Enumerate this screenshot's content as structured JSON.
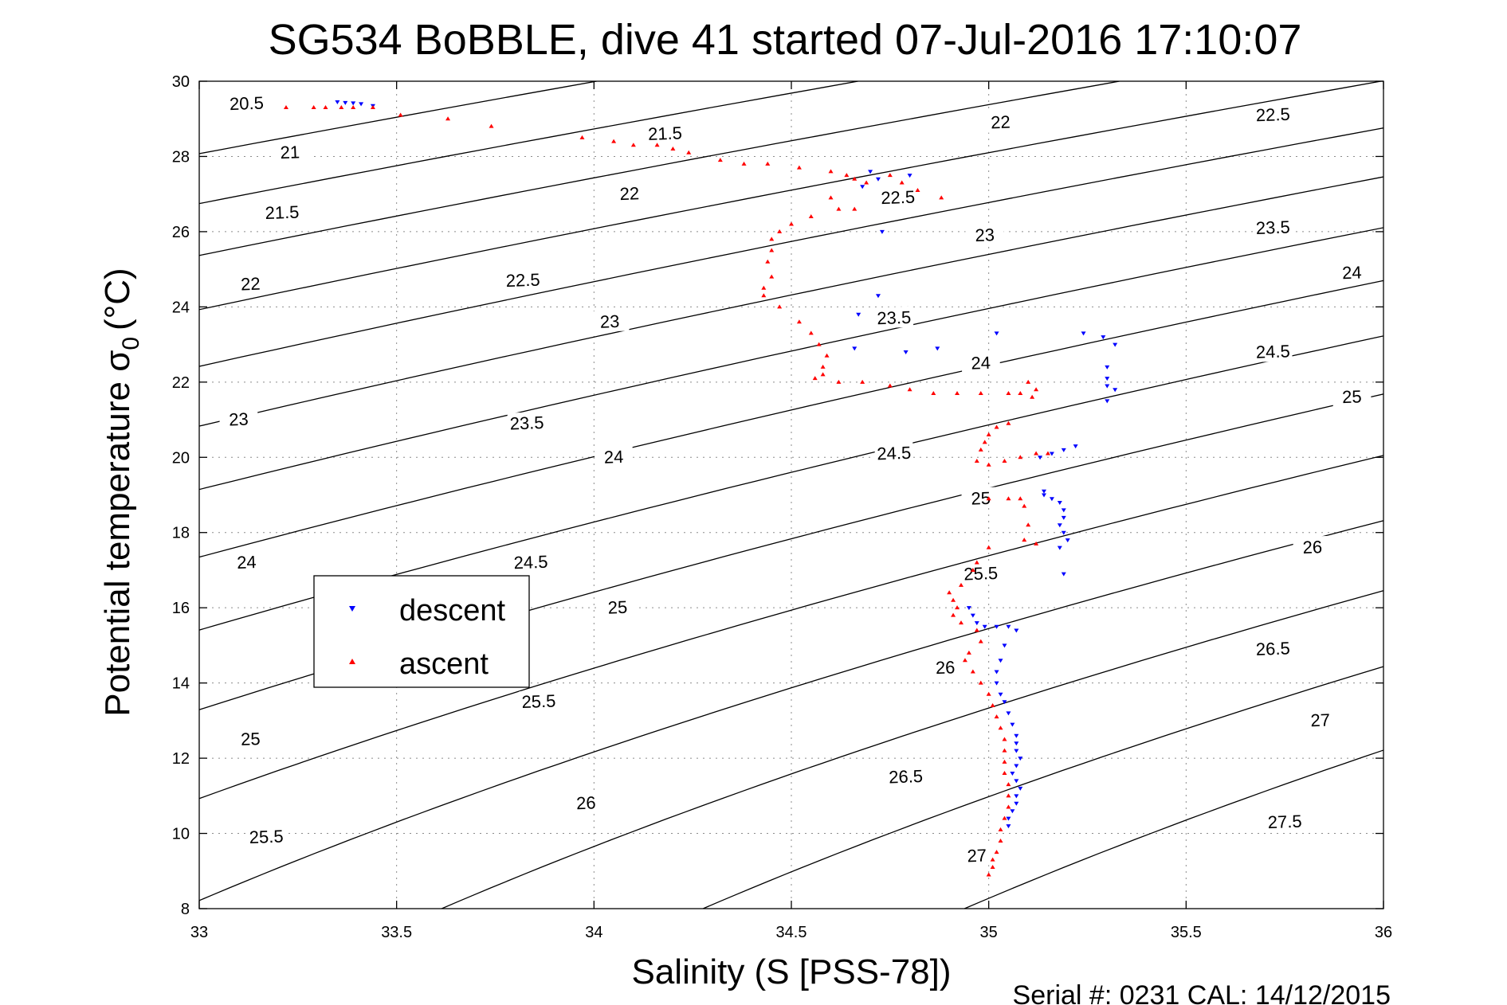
{
  "chart_data": {
    "type": "scatter",
    "title": "SG534 BoBBLE, dive 41 started 07-Jul-2016 17:10:07",
    "xlabel": "Salinity (S [PSS-78])",
    "ylabel_main": "Potential temperature σ",
    "ylabel_sub": "0",
    "ylabel_unit": "(°C)",
    "xlim": [
      33,
      36
    ],
    "ylim": [
      8,
      30
    ],
    "x_ticks": [
      "33",
      "33.5",
      "34",
      "34.5",
      "35",
      "35.5",
      "36"
    ],
    "y_ticks": [
      "8",
      "10",
      "12",
      "14",
      "16",
      "18",
      "20",
      "22",
      "24",
      "26",
      "28",
      "30"
    ],
    "grid": true,
    "legend_position": "center-left",
    "footer": "Serial #: 0231  CAL: 14/12/2015",
    "contour_levels": [
      20.5,
      21,
      21.5,
      22,
      22.5,
      23,
      23.5,
      24,
      24.5,
      25,
      25.5,
      26,
      26.5,
      27,
      27.5
    ],
    "contour_labels": [
      {
        "text": "20.5",
        "s": 33.12,
        "t": 29.4
      },
      {
        "text": "21",
        "s": 33.23,
        "t": 28.1
      },
      {
        "text": "21.5",
        "s": 33.21,
        "t": 26.5
      },
      {
        "text": "22",
        "s": 33.13,
        "t": 24.6
      },
      {
        "text": "23",
        "s": 33.1,
        "t": 21.0
      },
      {
        "text": "24",
        "s": 33.12,
        "t": 17.2
      },
      {
        "text": "25",
        "s": 33.13,
        "t": 12.5
      },
      {
        "text": "25.5",
        "s": 33.17,
        "t": 9.9
      },
      {
        "text": "21.5",
        "s": 34.18,
        "t": 28.6
      },
      {
        "text": "22",
        "s": 34.09,
        "t": 27.0
      },
      {
        "text": "22.5",
        "s": 33.82,
        "t": 24.7
      },
      {
        "text": "23",
        "s": 34.04,
        "t": 23.6
      },
      {
        "text": "23.5",
        "s": 33.83,
        "t": 20.9
      },
      {
        "text": "24",
        "s": 34.05,
        "t": 20.0
      },
      {
        "text": "24.5",
        "s": 33.84,
        "t": 17.2
      },
      {
        "text": "25",
        "s": 34.06,
        "t": 16.0
      },
      {
        "text": "25.5",
        "s": 33.86,
        "t": 13.5
      },
      {
        "text": "26",
        "s": 33.98,
        "t": 10.8
      },
      {
        "text": "22",
        "s": 35.03,
        "t": 28.9
      },
      {
        "text": "22.5",
        "s": 34.77,
        "t": 26.9
      },
      {
        "text": "23",
        "s": 34.99,
        "t": 25.9
      },
      {
        "text": "23.5",
        "s": 34.76,
        "t": 23.7
      },
      {
        "text": "24",
        "s": 34.98,
        "t": 22.5
      },
      {
        "text": "24.5",
        "s": 34.76,
        "t": 20.1
      },
      {
        "text": "25",
        "s": 34.98,
        "t": 18.9
      },
      {
        "text": "25.5",
        "s": 34.98,
        "t": 16.9
      },
      {
        "text": "26",
        "s": 34.89,
        "t": 14.4
      },
      {
        "text": "26.5",
        "s": 34.79,
        "t": 11.5
      },
      {
        "text": "27",
        "s": 34.97,
        "t": 9.4
      },
      {
        "text": "22.5",
        "s": 35.72,
        "t": 29.1
      },
      {
        "text": "23.5",
        "s": 35.72,
        "t": 26.1
      },
      {
        "text": "24",
        "s": 35.92,
        "t": 24.9
      },
      {
        "text": "24.5",
        "s": 35.72,
        "t": 22.8
      },
      {
        "text": "25",
        "s": 35.92,
        "t": 21.6
      },
      {
        "text": "26",
        "s": 35.82,
        "t": 17.6
      },
      {
        "text": "26.5",
        "s": 35.72,
        "t": 14.9
      },
      {
        "text": "27",
        "s": 35.84,
        "t": 13.0
      },
      {
        "text": "27.5",
        "s": 35.75,
        "t": 10.3
      }
    ],
    "series": [
      {
        "name": "descent",
        "color": "#0000ff",
        "marker": "triangle-down",
        "points": [
          [
            33.35,
            29.45
          ],
          [
            33.37,
            29.43
          ],
          [
            33.39,
            29.42
          ],
          [
            33.41,
            29.4
          ],
          [
            33.44,
            29.35
          ],
          [
            34.7,
            27.6
          ],
          [
            34.72,
            27.4
          ],
          [
            34.8,
            27.5
          ],
          [
            34.68,
            27.2
          ],
          [
            34.73,
            26.0
          ],
          [
            34.72,
            24.3
          ],
          [
            34.67,
            23.8
          ],
          [
            34.66,
            22.9
          ],
          [
            34.79,
            22.8
          ],
          [
            34.87,
            22.9
          ],
          [
            35.02,
            23.3
          ],
          [
            35.24,
            23.3
          ],
          [
            35.29,
            23.2
          ],
          [
            35.32,
            23.0
          ],
          [
            35.3,
            22.4
          ],
          [
            35.3,
            22.1
          ],
          [
            35.3,
            21.9
          ],
          [
            35.32,
            21.8
          ],
          [
            35.3,
            21.5
          ],
          [
            35.22,
            20.3
          ],
          [
            35.19,
            20.2
          ],
          [
            35.16,
            20.1
          ],
          [
            35.13,
            20.0
          ],
          [
            35.2,
            17.8
          ],
          [
            35.18,
            17.6
          ],
          [
            35.19,
            16.9
          ],
          [
            35.14,
            19.1
          ],
          [
            35.14,
            19.0
          ],
          [
            35.16,
            18.9
          ],
          [
            35.18,
            18.8
          ],
          [
            35.19,
            18.6
          ],
          [
            35.19,
            18.4
          ],
          [
            35.18,
            18.2
          ],
          [
            35.19,
            18.0
          ],
          [
            34.95,
            16.0
          ],
          [
            34.96,
            15.8
          ],
          [
            34.97,
            15.6
          ],
          [
            34.99,
            15.5
          ],
          [
            35.02,
            15.5
          ],
          [
            35.05,
            15.5
          ],
          [
            35.07,
            15.4
          ],
          [
            35.04,
            15.0
          ],
          [
            35.03,
            14.6
          ],
          [
            35.02,
            14.3
          ],
          [
            35.02,
            14.0
          ],
          [
            35.03,
            13.7
          ],
          [
            35.04,
            13.5
          ],
          [
            35.05,
            13.2
          ],
          [
            35.06,
            12.9
          ],
          [
            35.07,
            12.6
          ],
          [
            35.07,
            12.4
          ],
          [
            35.07,
            12.2
          ],
          [
            35.08,
            12.0
          ],
          [
            35.07,
            11.8
          ],
          [
            35.06,
            11.6
          ],
          [
            35.07,
            11.4
          ],
          [
            35.08,
            11.2
          ],
          [
            35.07,
            11.0
          ],
          [
            35.07,
            10.8
          ],
          [
            35.06,
            10.6
          ],
          [
            35.05,
            10.4
          ],
          [
            35.05,
            10.2
          ]
        ]
      },
      {
        "name": "ascent",
        "color": "#ff0000",
        "marker": "triangle-up",
        "points": [
          [
            33.22,
            29.3
          ],
          [
            33.29,
            29.3
          ],
          [
            33.32,
            29.3
          ],
          [
            33.36,
            29.3
          ],
          [
            33.39,
            29.3
          ],
          [
            33.44,
            29.3
          ],
          [
            33.51,
            29.1
          ],
          [
            33.63,
            29.0
          ],
          [
            33.74,
            28.8
          ],
          [
            33.97,
            28.5
          ],
          [
            34.05,
            28.4
          ],
          [
            34.1,
            28.3
          ],
          [
            34.16,
            28.3
          ],
          [
            34.2,
            28.2
          ],
          [
            34.24,
            28.1
          ],
          [
            34.32,
            27.9
          ],
          [
            34.38,
            27.8
          ],
          [
            34.44,
            27.8
          ],
          [
            34.52,
            27.7
          ],
          [
            34.6,
            27.6
          ],
          [
            34.64,
            27.5
          ],
          [
            34.66,
            27.4
          ],
          [
            34.69,
            27.3
          ],
          [
            34.75,
            27.5
          ],
          [
            34.78,
            27.3
          ],
          [
            34.82,
            27.1
          ],
          [
            34.88,
            26.9
          ],
          [
            34.6,
            26.9
          ],
          [
            34.62,
            26.6
          ],
          [
            34.66,
            26.6
          ],
          [
            34.55,
            26.4
          ],
          [
            34.5,
            26.2
          ],
          [
            34.47,
            26.0
          ],
          [
            34.45,
            25.8
          ],
          [
            34.45,
            25.5
          ],
          [
            34.44,
            25.2
          ],
          [
            34.45,
            24.8
          ],
          [
            34.43,
            24.5
          ],
          [
            34.43,
            24.3
          ],
          [
            34.47,
            24.0
          ],
          [
            34.52,
            23.6
          ],
          [
            34.55,
            23.3
          ],
          [
            34.57,
            23.0
          ],
          [
            34.59,
            22.7
          ],
          [
            34.58,
            22.4
          ],
          [
            34.58,
            22.2
          ],
          [
            34.56,
            22.1
          ],
          [
            34.62,
            22.0
          ],
          [
            34.68,
            22.0
          ],
          [
            34.75,
            21.9
          ],
          [
            34.8,
            21.8
          ],
          [
            34.86,
            21.7
          ],
          [
            34.92,
            21.7
          ],
          [
            34.98,
            21.7
          ],
          [
            35.05,
            21.7
          ],
          [
            35.08,
            21.7
          ],
          [
            35.11,
            21.6
          ],
          [
            35.12,
            21.8
          ],
          [
            35.1,
            22.0
          ],
          [
            35.05,
            20.9
          ],
          [
            35.02,
            20.8
          ],
          [
            35.0,
            20.6
          ],
          [
            34.99,
            20.4
          ],
          [
            34.98,
            20.2
          ],
          [
            34.97,
            19.9
          ],
          [
            35.0,
            19.8
          ],
          [
            35.04,
            19.9
          ],
          [
            35.08,
            20.0
          ],
          [
            35.12,
            20.1
          ],
          [
            35.15,
            20.1
          ],
          [
            35.0,
            18.9
          ],
          [
            35.05,
            18.9
          ],
          [
            35.08,
            18.9
          ],
          [
            35.09,
            18.7
          ],
          [
            35.1,
            18.2
          ],
          [
            35.09,
            17.8
          ],
          [
            35.12,
            17.7
          ],
          [
            35.0,
            17.6
          ],
          [
            34.97,
            17.2
          ],
          [
            34.96,
            17.0
          ],
          [
            34.93,
            16.6
          ],
          [
            34.9,
            16.4
          ],
          [
            34.91,
            16.2
          ],
          [
            34.92,
            16.0
          ],
          [
            34.91,
            15.8
          ],
          [
            34.93,
            15.6
          ],
          [
            34.97,
            15.4
          ],
          [
            34.98,
            15.1
          ],
          [
            34.95,
            14.8
          ],
          [
            34.94,
            14.6
          ],
          [
            34.96,
            14.3
          ],
          [
            34.98,
            14.0
          ],
          [
            35.0,
            13.7
          ],
          [
            35.01,
            13.4
          ],
          [
            35.02,
            13.1
          ],
          [
            35.03,
            12.8
          ],
          [
            35.04,
            12.5
          ],
          [
            35.04,
            12.2
          ],
          [
            35.04,
            11.9
          ],
          [
            35.04,
            11.6
          ],
          [
            35.05,
            11.3
          ],
          [
            35.05,
            11.0
          ],
          [
            35.05,
            10.7
          ],
          [
            35.04,
            10.4
          ],
          [
            35.03,
            10.1
          ],
          [
            35.03,
            9.8
          ],
          [
            35.02,
            9.5
          ],
          [
            35.01,
            9.3
          ],
          [
            35.01,
            9.1
          ],
          [
            35.0,
            8.9
          ]
        ]
      }
    ]
  }
}
